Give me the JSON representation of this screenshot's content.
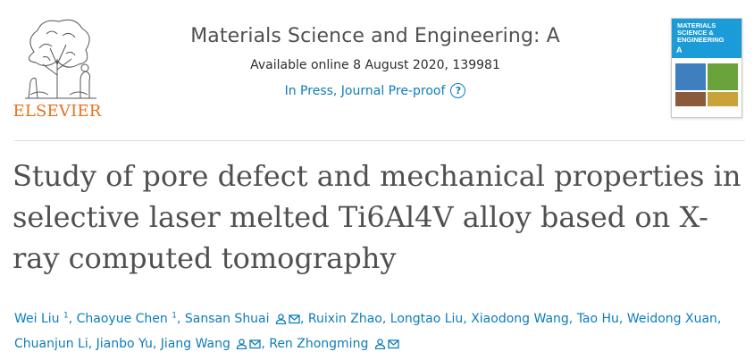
{
  "header": {
    "publisher_logo_text": "ELSEVIER",
    "journal_title": "Materials Science and Engineering: A",
    "availability": "Available online 8 August 2020, 139981",
    "status_link": "In Press, Journal Pre-proof",
    "help_icon": "question-circle-icon",
    "cover": {
      "title_line1": "MATERIALS",
      "title_line2": "SCIENCE &",
      "title_line3": "ENGINEERING",
      "series_letter": "A"
    }
  },
  "article": {
    "title": "Study of pore defect and mechanical properties in selective laser melted Ti6Al4V alloy based on X-ray computed tomography"
  },
  "authors": [
    {
      "name": "Wei Liu",
      "sup": "1"
    },
    {
      "name": "Chaoyue Chen",
      "sup": "1"
    },
    {
      "name": "Sansan Shuai",
      "icons": [
        "person-icon",
        "envelope-icon"
      ]
    },
    {
      "name": "Ruixin Zhao"
    },
    {
      "name": "Longtao Liu"
    },
    {
      "name": "Xiaodong Wang"
    },
    {
      "name": "Tao Hu"
    },
    {
      "name": "Weidong Xuan"
    },
    {
      "name": "Chuanjun Li"
    },
    {
      "name": "Jianbo Yu"
    },
    {
      "name": "Jiang Wang",
      "icons": [
        "person-icon",
        "envelope-icon"
      ]
    },
    {
      "name": "Ren Zhongming",
      "icons": [
        "person-icon",
        "envelope-icon"
      ]
    }
  ],
  "colors": {
    "link": "#0c7dbb",
    "elsevier_orange": "#e9711c",
    "title_gray": "#505050"
  }
}
